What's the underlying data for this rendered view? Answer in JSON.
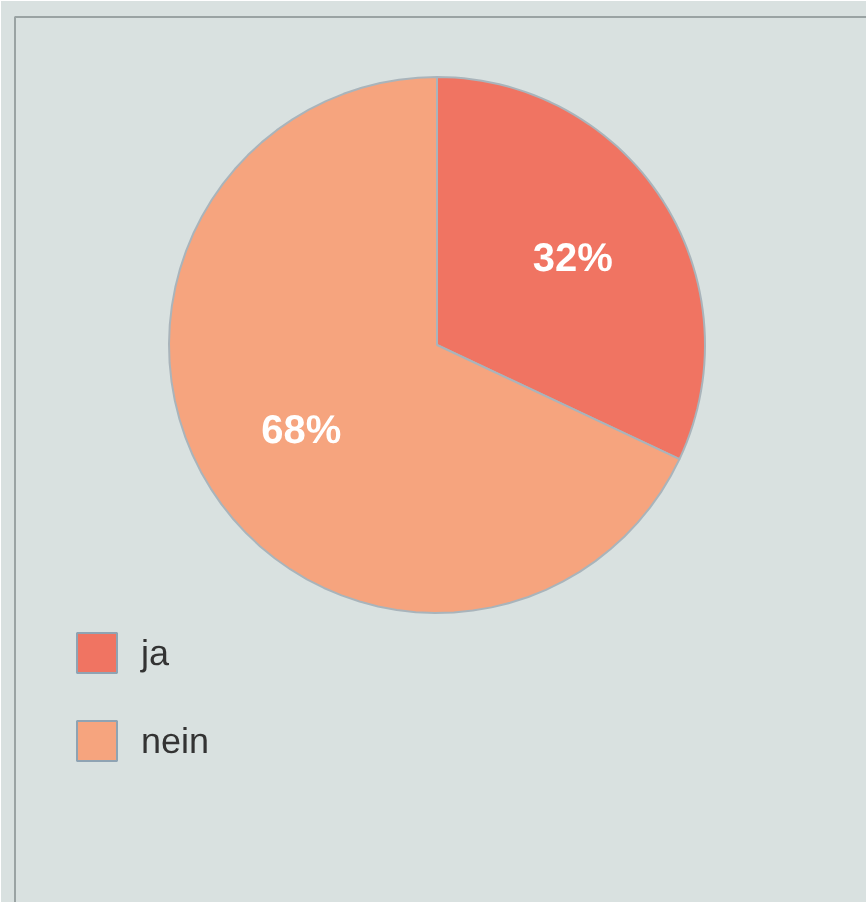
{
  "chart_data": {
    "type": "pie",
    "categories": [
      "ja",
      "nein"
    ],
    "values": [
      32,
      68
    ],
    "colors": [
      "#f07462",
      "#f6a47e"
    ],
    "data_labels": true,
    "value_labels": [
      "32%",
      "68%"
    ],
    "legend": "bottom left"
  }
}
